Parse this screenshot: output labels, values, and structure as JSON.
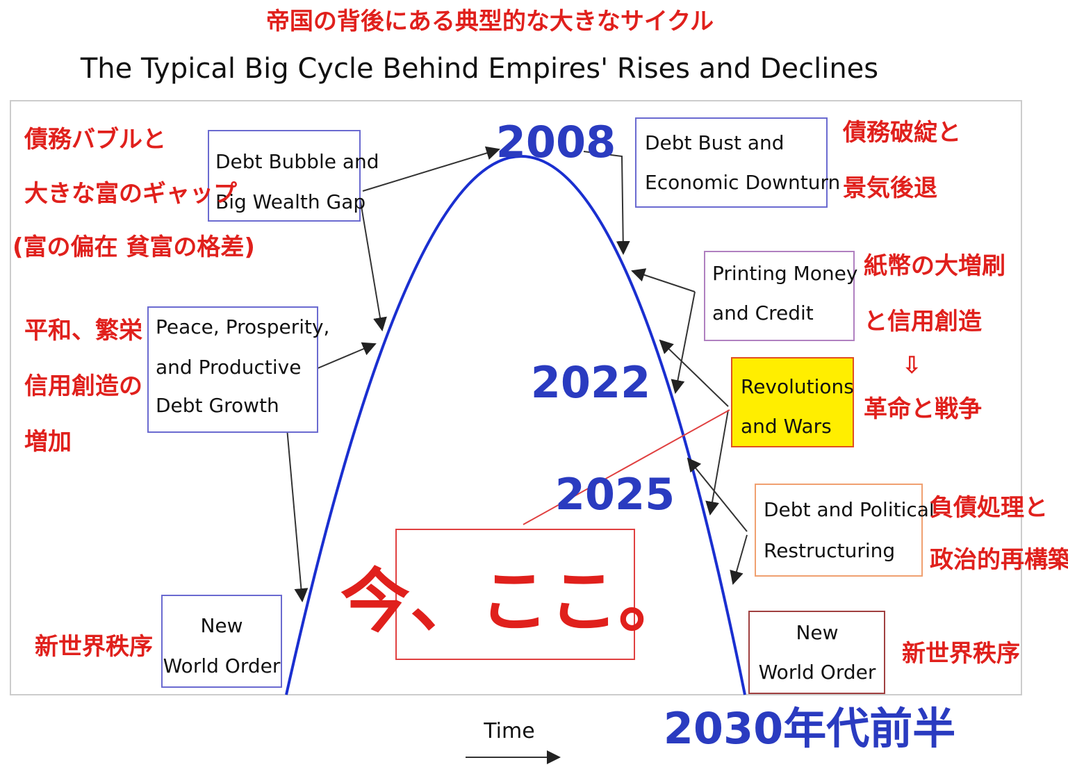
{
  "title_ja": "帝国の背後にある典型的な大きなサイクル",
  "title": "The Typical Big Cycle Behind Empires' Rises and Declines",
  "boxes": [
    {
      "lines": [
        "Debt Bubble and",
        "Big Wealth Gap"
      ]
    },
    {
      "lines": [
        "Peace, Prosperity,",
        "and Productive",
        "Debt Growth"
      ]
    },
    {
      "lines": [
        "New",
        "World Order"
      ]
    },
    {
      "lines": [
        "Debt Bust and",
        "Economic Downturn"
      ]
    },
    {
      "lines": [
        "Printing Money",
        "and Credit"
      ]
    },
    {
      "lines": [
        "Revolutions",
        "and Wars"
      ]
    },
    {
      "lines": [
        "Debt and Political",
        "Restructuring"
      ]
    },
    {
      "lines": [
        "New",
        "World Order"
      ]
    }
  ],
  "notes": [
    {
      "lines": [
        "債務バブルと",
        "大きな富のギャップ",
        "(富の偏在  貧富の格差)"
      ]
    },
    {
      "lines": [
        "平和、繁栄",
        "信用創造の",
        "増加"
      ]
    },
    {
      "lines": [
        "新世界秩序"
      ]
    },
    {
      "lines": [
        "債務破綻と",
        "景気後退"
      ]
    },
    {
      "lines": [
        "紙幣の大増刷",
        "と信用創造",
        "⇩",
        "革命と戦争"
      ]
    },
    {
      "lines": [
        "負債処理と",
        "政治的再構築"
      ]
    },
    {
      "lines": [
        "新世界秩序"
      ]
    }
  ],
  "years": [
    "2008",
    "2022",
    "2025",
    "2030年代前半"
  ],
  "here": "今、ここ。",
  "x_axis": "Time"
}
